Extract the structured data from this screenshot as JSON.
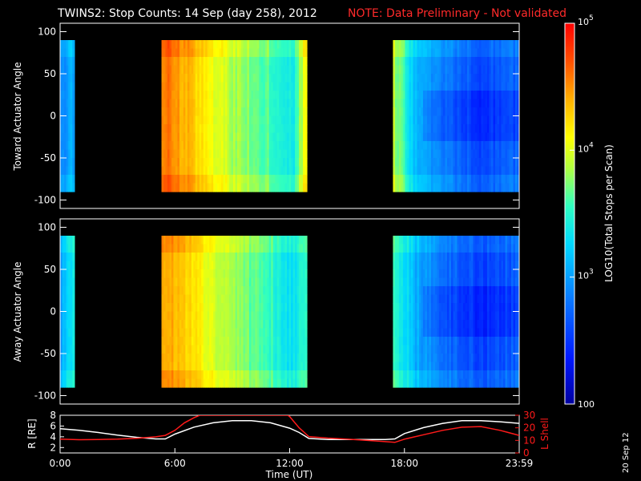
{
  "header": {
    "title": "TWINS2: Stop Counts: 14 Sep (day 258), 2012",
    "note": "NOTE: Data Preliminary - Not validated"
  },
  "side_date": "20 Sep 12",
  "colors": {
    "title": "#ffffff",
    "note": "#ff2a2a",
    "r_line": "#ffffff",
    "lshell_line": "#ff1a1a",
    "background": "#000000"
  },
  "chart_data": [
    {
      "type": "heatmap",
      "panel": "top",
      "ylabel": "Toward Actuator Angle",
      "y_ticks": [
        "100",
        "50",
        "0",
        "-50",
        "-100"
      ],
      "ylim": [
        -110,
        110
      ],
      "x_range_hours": [
        0,
        24
      ],
      "data_y_range": [
        -90,
        90
      ],
      "coverage_hours": [
        [
          0,
          0.75
        ],
        [
          5.3,
          12.9
        ],
        [
          17.4,
          24
        ]
      ],
      "approx_log10_level_by_hour": [
        [
          0,
          2.9
        ],
        [
          0.5,
          3.0
        ],
        [
          5.3,
          4.6
        ],
        [
          5.8,
          4.55
        ],
        [
          7,
          4.3
        ],
        [
          9,
          3.85
        ],
        [
          11,
          3.6
        ],
        [
          12.2,
          3.4
        ],
        [
          12.9,
          4.2
        ],
        [
          17.4,
          3.9
        ],
        [
          18.5,
          3.2
        ],
        [
          20,
          2.85
        ],
        [
          22,
          2.6
        ],
        [
          24,
          2.75
        ]
      ]
    },
    {
      "type": "heatmap",
      "panel": "middle",
      "ylabel": "Away Actuator Angle",
      "y_ticks": [
        "100",
        "50",
        "0",
        "-50",
        "-100"
      ],
      "ylim": [
        -110,
        110
      ],
      "x_range_hours": [
        0,
        24
      ],
      "data_y_range": [
        -90,
        90
      ],
      "coverage_hours": [
        [
          0,
          0.75
        ],
        [
          5.3,
          12.9
        ],
        [
          17.4,
          24
        ]
      ],
      "approx_log10_level_by_hour": [
        [
          0,
          3.0
        ],
        [
          0.5,
          3.3
        ],
        [
          5.3,
          4.5
        ],
        [
          5.8,
          4.4
        ],
        [
          7,
          4.2
        ],
        [
          9,
          3.8
        ],
        [
          11,
          3.55
        ],
        [
          12.2,
          3.3
        ],
        [
          12.9,
          3.6
        ],
        [
          17.4,
          3.6
        ],
        [
          18.5,
          3.1
        ],
        [
          20,
          2.8
        ],
        [
          22,
          2.55
        ],
        [
          24,
          2.7
        ]
      ]
    },
    {
      "type": "line",
      "panel": "bottom",
      "xlabel": "Time (UT)",
      "x_tick_labels": [
        "0:00",
        "6:00",
        "12:00",
        "18:00",
        "23:59"
      ],
      "x_tick_hours": [
        0,
        6,
        12,
        18,
        24
      ],
      "y_left_label": "R [RE]",
      "y_left_ticks": [
        "8",
        "6",
        "4",
        "2"
      ],
      "y_left_range": [
        1,
        8
      ],
      "y_right_label": "L Shell",
      "y_right_ticks": [
        "30",
        "20",
        "10",
        "0"
      ],
      "y_right_range": [
        0,
        30
      ],
      "series": [
        {
          "name": "R [RE]",
          "axis": "left",
          "x": [
            0,
            1,
            2,
            3,
            4,
            5,
            5.5,
            6,
            7,
            8,
            9,
            10,
            11,
            12,
            12.5,
            13,
            14,
            15,
            16,
            17,
            17.5,
            18,
            19,
            20,
            21,
            22,
            23,
            24
          ],
          "y": [
            5.5,
            5.2,
            4.8,
            4.3,
            3.9,
            3.6,
            3.6,
            4.5,
            5.8,
            6.6,
            7.0,
            7.0,
            6.6,
            5.6,
            4.8,
            3.7,
            3.5,
            3.5,
            3.5,
            3.5,
            3.6,
            4.6,
            5.7,
            6.5,
            7.0,
            7.0,
            6.8,
            6.5
          ]
        },
        {
          "name": "L Shell",
          "axis": "right",
          "x": [
            0,
            1,
            2,
            3,
            4,
            5,
            5.5,
            6,
            6.5,
            7,
            7.3,
            11.9,
            12,
            12.5,
            13,
            14,
            15,
            16,
            17,
            17.5,
            18,
            19,
            20,
            21,
            22,
            23,
            24
          ],
          "y": [
            11,
            10.5,
            10.7,
            11,
            11.6,
            12.8,
            14,
            18,
            24,
            28,
            30,
            30,
            29,
            20,
            13,
            11.8,
            11,
            10,
            9,
            8.4,
            11,
            14.5,
            18,
            20.5,
            21,
            18,
            14
          ]
        }
      ]
    }
  ],
  "colorbar": {
    "label": "LOG10(Total Stops per Scan)",
    "min": 100,
    "max": 100000,
    "tick_labels": [
      {
        "base": "10",
        "exp": "5"
      },
      {
        "base": "10",
        "exp": "4"
      },
      {
        "base": "10",
        "exp": "3"
      },
      {
        "base": "100",
        "exp": ""
      }
    ]
  }
}
